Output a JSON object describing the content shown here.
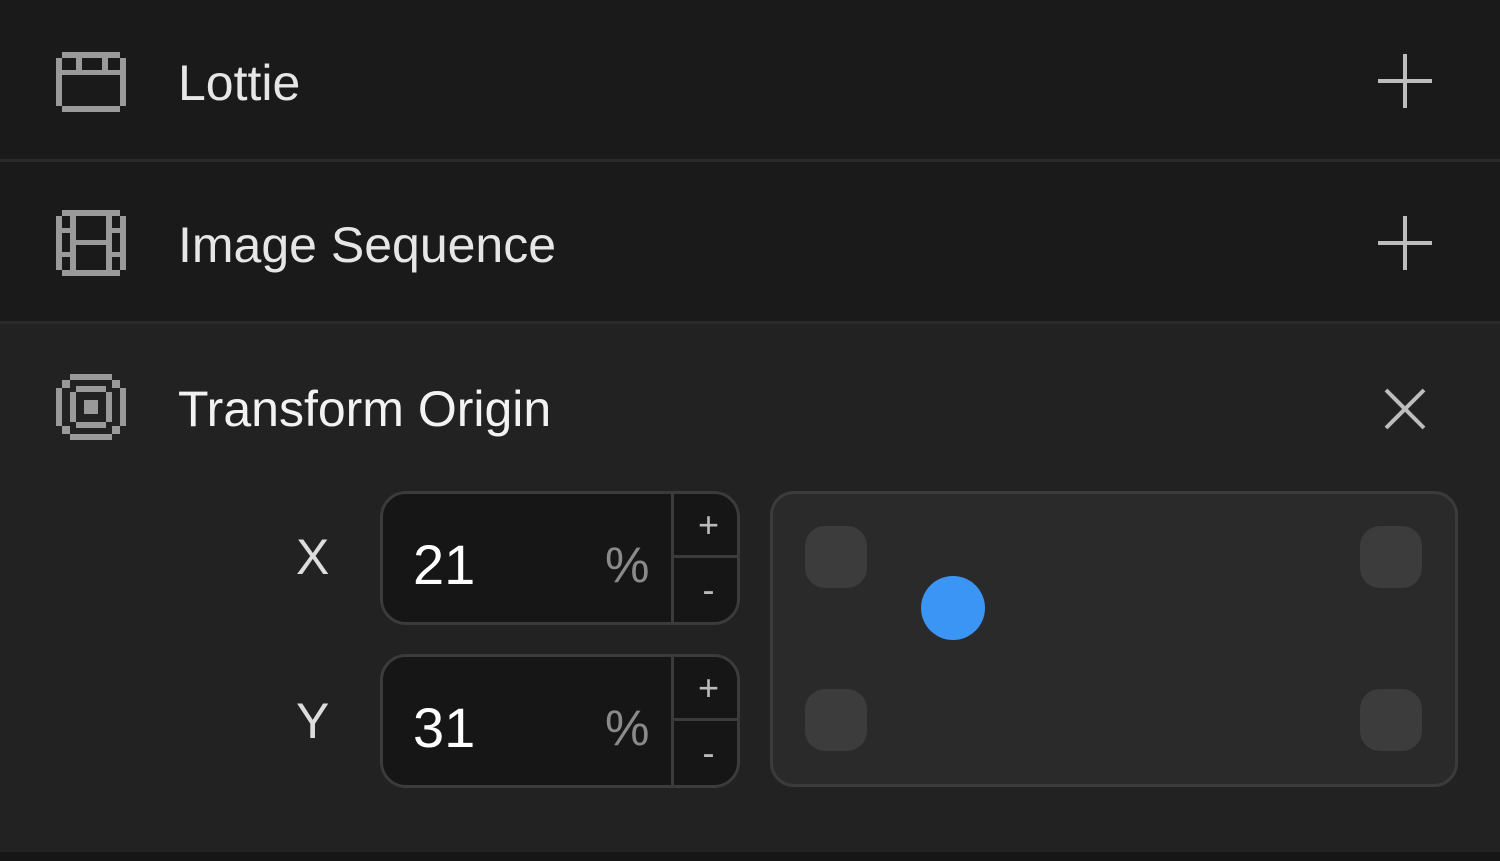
{
  "rows": [
    {
      "label": "Lottie",
      "icon": "clapperboard-icon",
      "action": "plus"
    },
    {
      "label": "Image Sequence",
      "icon": "film-strip-icon",
      "action": "plus"
    }
  ],
  "transform_origin": {
    "label": "Transform Origin",
    "icon": "target-square-icon",
    "action": "close",
    "x": {
      "axis": "X",
      "value": "21",
      "unit": "%",
      "inc": "+",
      "dec": "-"
    },
    "y": {
      "axis": "Y",
      "value": "31",
      "unit": "%",
      "inc": "+",
      "dec": "-"
    },
    "accent": "#3b95f5"
  }
}
